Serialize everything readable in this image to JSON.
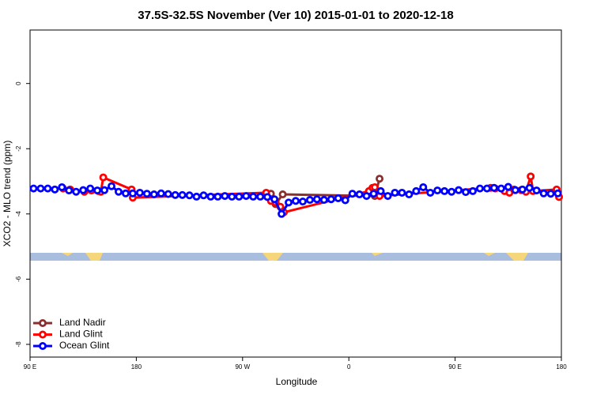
{
  "chart_data": {
    "type": "line",
    "title": "37.5S-32.5S November (Ver 10)   2015-01-01 to 2020-12-18",
    "x_label": "Longitude",
    "y_label": "XCO2 - MLO trend (ppm)",
    "xlim": [
      90,
      540
    ],
    "ylim": [
      -8.39,
      1.64
    ],
    "xticks": [
      {
        "value": 90,
        "label": "90 E"
      },
      180,
      {
        "value": 270,
        "label": "90 W"
      },
      {
        "value": 360,
        "label": "0"
      },
      {
        "value": 450,
        "label": "90 E"
      },
      {
        "value": 540,
        "label": "180"
      }
    ],
    "yticks": [
      0,
      -2,
      -4,
      -6,
      -8
    ],
    "legend": "lower left",
    "series": [
      {
        "name": "Land Nadir",
        "color": "#8b2e2e",
        "x": [
          294,
          298,
          304,
          382,
          386
        ],
        "values": [
          -3.38,
          -3.7,
          -3.4,
          -3.45,
          -2.92
        ]
      },
      {
        "name": "Land Glint",
        "color": "#ff0000",
        "x": [
          118,
          124,
          136,
          142,
          148,
          150,
          152,
          176,
          177,
          290,
          294,
          298,
          302,
          305,
          377,
          380,
          382,
          386,
          480,
          484,
          492,
          496,
          500,
          506,
          510,
          514,
          516,
          536,
          538
        ],
        "values": [
          -3.22,
          -3.25,
          -3.32,
          -3.28,
          -3.3,
          -3.32,
          -2.88,
          -3.25,
          -3.5,
          -3.35,
          -3.6,
          -3.65,
          -3.78,
          -3.95,
          -3.3,
          -3.2,
          -3.18,
          -3.45,
          -3.2,
          -3.22,
          -3.3,
          -3.35,
          -3.25,
          -3.27,
          -3.32,
          -2.85,
          -3.3,
          -3.25,
          -3.48
        ]
      },
      {
        "name": "Ocean Glint",
        "color": "#0000ff",
        "x": [
          93,
          99,
          105,
          111,
          117,
          123,
          129,
          135,
          141,
          147,
          153,
          159,
          165,
          171,
          177,
          183,
          189,
          195,
          201,
          207,
          213,
          219,
          225,
          231,
          237,
          243,
          249,
          255,
          261,
          267,
          273,
          279,
          285,
          291,
          297,
          303,
          309,
          315,
          321,
          327,
          333,
          339,
          345,
          351,
          357,
          363,
          369,
          375,
          381,
          387,
          393,
          399,
          405,
          411,
          417,
          423,
          429,
          435,
          441,
          447,
          453,
          459,
          465,
          471,
          477,
          483,
          489,
          495,
          501,
          507,
          513,
          519,
          525,
          531,
          537
        ],
        "values": [
          -3.22,
          -3.22,
          -3.22,
          -3.25,
          -3.18,
          -3.28,
          -3.32,
          -3.27,
          -3.22,
          -3.28,
          -3.27,
          -3.15,
          -3.32,
          -3.37,
          -3.37,
          -3.35,
          -3.38,
          -3.4,
          -3.37,
          -3.39,
          -3.42,
          -3.42,
          -3.43,
          -3.47,
          -3.43,
          -3.47,
          -3.47,
          -3.45,
          -3.47,
          -3.47,
          -3.45,
          -3.47,
          -3.47,
          -3.48,
          -3.55,
          -4.0,
          -3.65,
          -3.6,
          -3.62,
          -3.57,
          -3.55,
          -3.57,
          -3.55,
          -3.52,
          -3.58,
          -3.38,
          -3.4,
          -3.45,
          -3.38,
          -3.3,
          -3.45,
          -3.35,
          -3.35,
          -3.4,
          -3.3,
          -3.18,
          -3.35,
          -3.28,
          -3.3,
          -3.32,
          -3.27,
          -3.33,
          -3.3,
          -3.22,
          -3.22,
          -3.2,
          -3.22,
          -3.17,
          -3.27,
          -3.25,
          -3.2,
          -3.28,
          -3.37,
          -3.38,
          -3.37
        ]
      }
    ]
  }
}
